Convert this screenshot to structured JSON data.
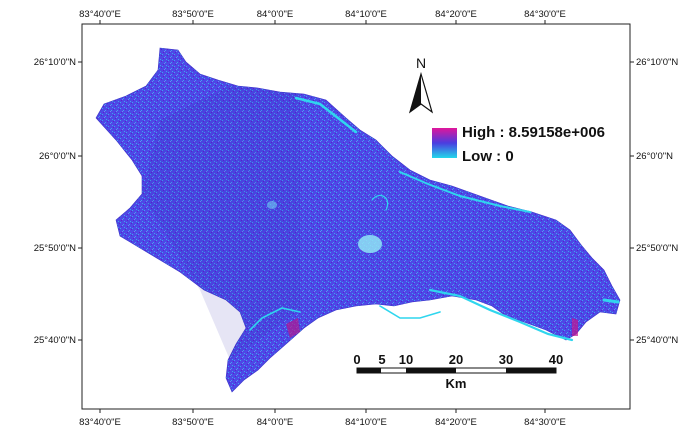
{
  "map": {
    "top_labels": [
      "83°40'0\"E",
      "83°50'0\"E",
      "84°0'0\"E",
      "84°10'0\"E",
      "84°20'0\"E",
      "84°30'0\"E"
    ],
    "bottom_labels": [
      "83°40'0\"E",
      "83°50'0\"E",
      "84°0'0\"E",
      "84°10'0\"E",
      "84°20'0\"E",
      "84°30'0\"E"
    ],
    "left_labels": [
      "26°10'0\"N",
      "26°0'0\"N",
      "25°50'0\"N",
      "25°40'0\"N"
    ],
    "right_labels": [
      "26°10'0\"N",
      "26°0'0\"N",
      "25°50'0\"N",
      "25°40'0\"N"
    ]
  },
  "legend": {
    "high_label": "High : 8.59158e+006",
    "low_label": "Low : 0",
    "colors": {
      "high": "#e0169b",
      "mid": "#4a3de0",
      "low": "#22d8ea"
    }
  },
  "north_arrow": {
    "label": "N"
  },
  "scale_bar": {
    "ticks": [
      "0",
      "5",
      "10",
      "20",
      "30",
      "40"
    ],
    "unit": "Km"
  },
  "colors": {
    "region_base": "#4d48e6",
    "region_texture_light": "#3fa3f0",
    "region_texture_dark": "#5a1fd0",
    "river": "#2fd6ee"
  }
}
